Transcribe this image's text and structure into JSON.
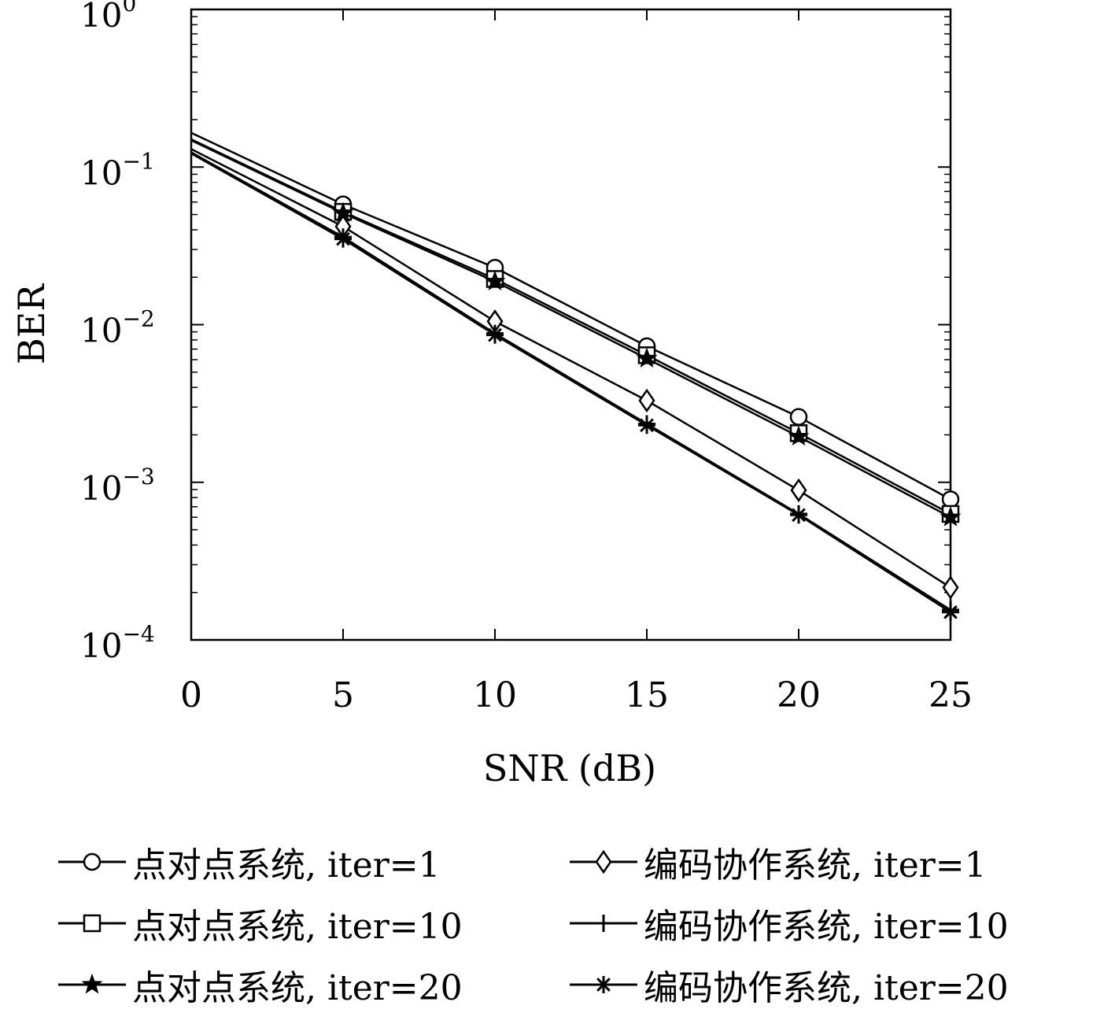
{
  "chart_data": {
    "type": "line",
    "title": "",
    "xlabel": "SNR (dB)",
    "ylabel": "BER",
    "xscale": "linear",
    "yscale": "log",
    "xlim": [
      0,
      25
    ],
    "ylim": [
      0.0001,
      1
    ],
    "x_ticks": [
      "0",
      "5",
      "10",
      "15",
      "20",
      "25"
    ],
    "y_ticks": [
      {
        "base": "10",
        "exp": "0"
      },
      {
        "base": "10",
        "exp": "−1"
      },
      {
        "base": "10",
        "exp": "−2"
      },
      {
        "base": "10",
        "exp": "−3"
      },
      {
        "base": "10",
        "exp": "−4"
      }
    ],
    "grid": false,
    "legend_position": "below",
    "x": [
      0,
      5,
      10,
      15,
      20,
      25
    ],
    "series": [
      {
        "name": "点对点系统, iter=1",
        "marker": "circle",
        "values": [
          0.165,
          0.058,
          0.023,
          0.0073,
          0.0026,
          0.00078
        ]
      },
      {
        "name": "点对点系统, iter=10",
        "marker": "square",
        "values": [
          0.15,
          0.052,
          0.0195,
          0.0064,
          0.00205,
          0.00063
        ]
      },
      {
        "name": "点对点系统, iter=20",
        "marker": "star",
        "values": [
          0.148,
          0.051,
          0.0188,
          0.0061,
          0.00195,
          0.0006
        ]
      },
      {
        "name": "编码协作系统, iter=1",
        "marker": "diamond",
        "values": [
          0.13,
          0.042,
          0.0105,
          0.0033,
          0.00089,
          0.000215
        ]
      },
      {
        "name": "编码协作系统, iter=10",
        "marker": "plus",
        "values": [
          0.124,
          0.036,
          0.0088,
          0.00235,
          0.00063,
          0.000155
        ]
      },
      {
        "name": "编码协作系统, iter=20",
        "marker": "asterisk",
        "values": [
          0.122,
          0.035,
          0.0086,
          0.0023,
          0.00062,
          0.00015
        ]
      }
    ]
  }
}
